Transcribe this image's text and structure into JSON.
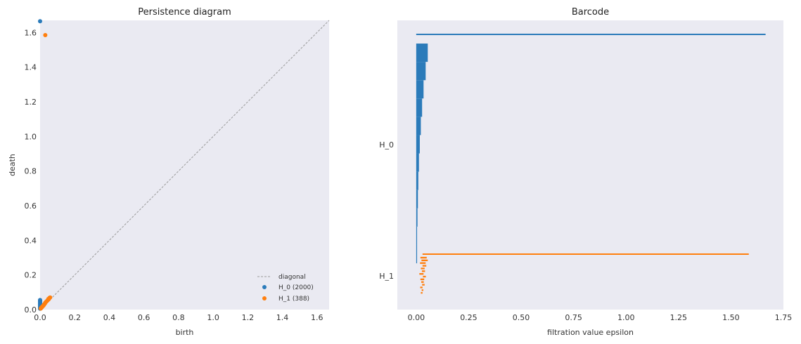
{
  "colors": {
    "h0": "#2b7bba",
    "h1": "#ff7f0e",
    "diagonal": "#999999",
    "axes_bg": "#eaeaf2"
  },
  "chart_data": [
    {
      "type": "scatter",
      "title": "Persistence diagram",
      "xlabel": "birth",
      "ylabel": "death",
      "xlim": [
        0,
        1.67
      ],
      "ylim": [
        0,
        1.67
      ],
      "xticks": [
        "0.0",
        "0.2",
        "0.4",
        "0.6",
        "0.8",
        "1.0",
        "1.2",
        "1.4",
        "1.6"
      ],
      "yticks": [
        "0.0",
        "0.2",
        "0.4",
        "0.6",
        "0.8",
        "1.0",
        "1.2",
        "1.4",
        "1.6"
      ],
      "grid": false,
      "legend_position": "bottom-right",
      "legend": [
        "diagonal",
        "H_0 (2000)",
        "H_1 (388)"
      ],
      "series": [
        {
          "name": "H_0 (2000)",
          "points": [
            [
              0,
              1.665
            ],
            [
              0,
              0.055
            ],
            [
              0,
              0.05
            ],
            [
              0,
              0.045
            ],
            [
              0,
              0.04
            ],
            [
              0,
              0.035
            ],
            [
              0,
              0.03
            ],
            [
              0,
              0.025
            ],
            [
              0,
              0.02
            ],
            [
              0,
              0.015
            ],
            [
              0,
              0.01
            ],
            [
              0,
              0.005
            ]
          ]
        },
        {
          "name": "H_1 (388)",
          "points": [
            [
              0.03,
              1.585
            ],
            [
              0.05,
              0.06
            ],
            [
              0.045,
              0.055
            ],
            [
              0.04,
              0.05
            ],
            [
              0.035,
              0.045
            ],
            [
              0.03,
              0.04
            ],
            [
              0.028,
              0.035
            ],
            [
              0.025,
              0.032
            ],
            [
              0.022,
              0.028
            ],
            [
              0.02,
              0.025
            ],
            [
              0.018,
              0.022
            ],
            [
              0.015,
              0.02
            ],
            [
              0.012,
              0.016
            ],
            [
              0.01,
              0.013
            ],
            [
              0.008,
              0.011
            ],
            [
              0.006,
              0.009
            ],
            [
              0.004,
              0.006
            ],
            [
              0.055,
              0.068
            ],
            [
              0.058,
              0.07
            ],
            [
              0.048,
              0.062
            ]
          ]
        }
      ]
    },
    {
      "type": "bar",
      "title": "Barcode",
      "xlabel": "filtration value epsilon",
      "xlim": [
        -0.09,
        1.75
      ],
      "xticks": [
        "0.00",
        "0.25",
        "0.50",
        "0.75",
        "1.00",
        "1.25",
        "1.50",
        "1.75"
      ],
      "categories": [
        "H_0",
        "H_1"
      ],
      "grid": false,
      "series": [
        {
          "name": "H_0",
          "bars": [
            {
              "birth": 0,
              "death": 1.665
            },
            {
              "birth": 0,
              "death": 0.055
            },
            {
              "birth": 0,
              "death": 0.045
            },
            {
              "birth": 0,
              "death": 0.035
            },
            {
              "birth": 0,
              "death": 0.028
            },
            {
              "birth": 0,
              "death": 0.022
            },
            {
              "birth": 0,
              "death": 0.017
            },
            {
              "birth": 0,
              "death": 0.013
            },
            {
              "birth": 0,
              "death": 0.01
            },
            {
              "birth": 0,
              "death": 0.008
            },
            {
              "birth": 0,
              "death": 0.006
            },
            {
              "birth": 0,
              "death": 0.004
            },
            {
              "birth": 0,
              "death": 0.002
            }
          ]
        },
        {
          "name": "H_1",
          "bars": [
            {
              "birth": 0.03,
              "death": 1.585
            },
            {
              "birth": 0.02,
              "death": 0.05
            },
            {
              "birth": 0.025,
              "death": 0.055
            },
            {
              "birth": 0.018,
              "death": 0.045
            },
            {
              "birth": 0.03,
              "death": 0.048
            },
            {
              "birth": 0.022,
              "death": 0.04
            },
            {
              "birth": 0.027,
              "death": 0.042
            },
            {
              "birth": 0.015,
              "death": 0.035
            },
            {
              "birth": 0.032,
              "death": 0.046
            },
            {
              "birth": 0.02,
              "death": 0.038
            },
            {
              "birth": 0.024,
              "death": 0.036
            },
            {
              "birth": 0.028,
              "death": 0.04
            },
            {
              "birth": 0.019,
              "death": 0.03
            },
            {
              "birth": 0.026,
              "death": 0.034
            },
            {
              "birth": 0.022,
              "death": 0.03
            }
          ]
        }
      ]
    }
  ]
}
